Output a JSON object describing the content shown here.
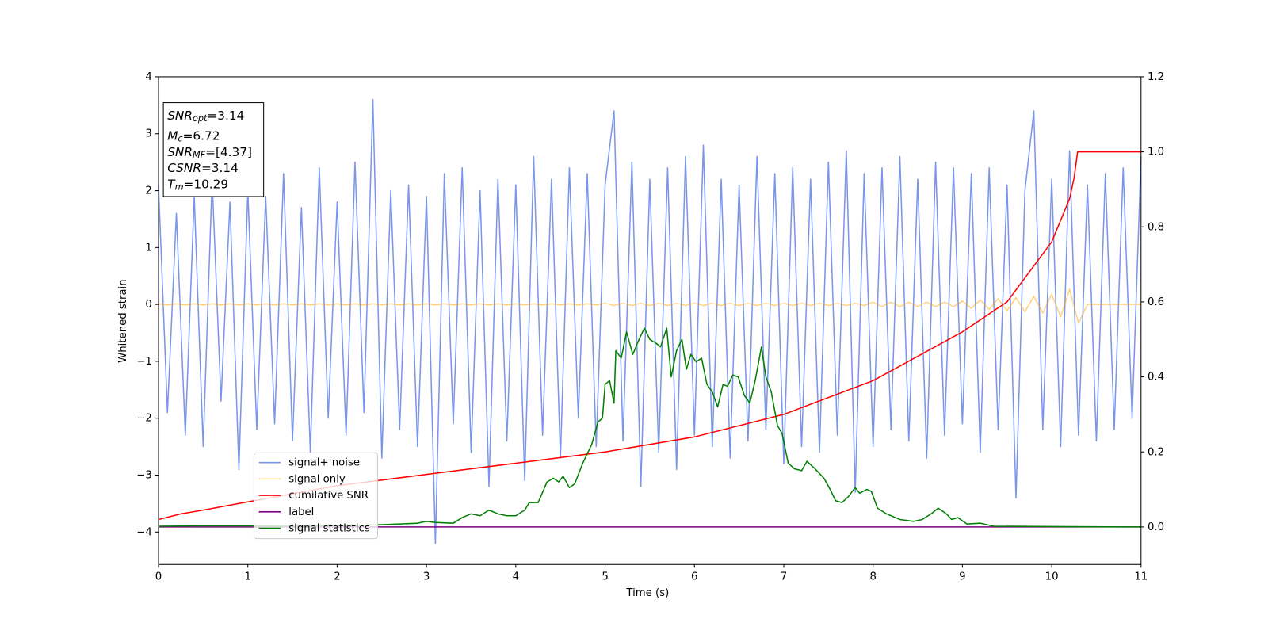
{
  "chart_data": {
    "type": "line",
    "xlabel": "Time (s)",
    "ylabel": "Whitened strain",
    "xlim": [
      0,
      11
    ],
    "xticks": [
      0,
      1,
      2,
      3,
      4,
      5,
      6,
      7,
      8,
      9,
      10,
      11
    ],
    "ylim": [
      -4.57,
      4
    ],
    "yticks": [
      {
        "value": -4,
        "label": "−4"
      },
      {
        "value": -3,
        "label": "−3"
      },
      {
        "value": -2,
        "label": "−2"
      },
      {
        "value": -1,
        "label": "−1"
      },
      0,
      1,
      2,
      3,
      4
    ],
    "y2lim": [
      -0.1,
      1.2
    ],
    "y2ticks": [
      {
        "value": 0,
        "label": "0.0"
      },
      {
        "value": 0.2,
        "label": "0.2"
      },
      {
        "value": 0.4,
        "label": "0.4"
      },
      {
        "value": 0.6,
        "label": "0.6"
      },
      {
        "value": 0.8,
        "label": "0.8"
      },
      {
        "value": 1,
        "label": "1.0"
      },
      {
        "value": 1.2,
        "label": "1.2"
      }
    ],
    "x": [
      0,
      0.1,
      0.2,
      0.3,
      0.4,
      0.5,
      0.6,
      0.7,
      0.8,
      0.9,
      1,
      1.1,
      1.2,
      1.3,
      1.4,
      1.5,
      1.6,
      1.7,
      1.8,
      1.9,
      2,
      2.1,
      2.2,
      2.3,
      2.4,
      2.5,
      2.6,
      2.7,
      2.8,
      2.9,
      3,
      3.1,
      3.2,
      3.3,
      3.4,
      3.5,
      3.6,
      3.7,
      3.8,
      3.9,
      4,
      4.1,
      4.2,
      4.3,
      4.4,
      4.5,
      4.6,
      4.7,
      4.8,
      4.9,
      5,
      5.1,
      5.2,
      5.3,
      5.4,
      5.5,
      5.6,
      5.7,
      5.8,
      5.9,
      6,
      6.1,
      6.2,
      6.3,
      6.4,
      6.5,
      6.6,
      6.7,
      6.8,
      6.9,
      7,
      7.1,
      7.2,
      7.3,
      7.4,
      7.5,
      7.6,
      7.7,
      7.8,
      7.9,
      8,
      8.1,
      8.2,
      8.3,
      8.4,
      8.5,
      8.6,
      8.7,
      8.8,
      8.9,
      9,
      9.1,
      9.2,
      9.3,
      9.4,
      9.5,
      9.6,
      9.7,
      9.8,
      9.9,
      10,
      10.1,
      10.2,
      10.3,
      10.4,
      10.5,
      10.6,
      10.7,
      10.8,
      10.9,
      11
    ],
    "series": [
      {
        "name": "signal+ noise",
        "color": "#4169e1",
        "alpha": 0.7,
        "values": [
          2.1,
          -1.9,
          1.6,
          -2.3,
          1.9,
          -2.5,
          2.2,
          -1.7,
          1.8,
          -2.9,
          2.0,
          -2.2,
          1.9,
          -2.1,
          2.3,
          -2.4,
          1.7,
          -2.6,
          2.4,
          -2.0,
          1.8,
          -2.3,
          2.5,
          -1.9,
          3.6,
          -2.7,
          2.0,
          -2.2,
          2.1,
          -2.5,
          1.9,
          -4.2,
          2.3,
          -2.1,
          2.4,
          -2.6,
          2.0,
          -3.2,
          2.2,
          -2.4,
          2.1,
          -3.1,
          2.6,
          -2.3,
          2.2,
          -2.7,
          2.4,
          -2.0,
          2.3,
          -2.5,
          2.1,
          3.4,
          -2.4,
          2.5,
          -3.2,
          2.2,
          -2.6,
          2.4,
          -2.9,
          2.6,
          -2.3,
          2.8,
          -2.5,
          2.2,
          -2.7,
          2.1,
          -2.4,
          2.6,
          -2.2,
          2.3,
          -2.8,
          2.4,
          -2.5,
          2.2,
          -2.6,
          2.5,
          -2.3,
          2.7,
          -3.3,
          2.3,
          -2.5,
          2.4,
          -2.2,
          2.6,
          -2.4,
          2.2,
          -2.7,
          2.5,
          -2.3,
          2.4,
          -2.1,
          2.3,
          -2.6,
          2.4,
          -2.2,
          2.1,
          -3.4,
          2.0,
          3.4,
          -2.2,
          2.2,
          -2.5,
          2.7,
          -2.3,
          2.1,
          -2.4,
          2.3,
          -2.2,
          2.4,
          -2.0,
          2.6
        ]
      },
      {
        "name": "signal only",
        "color": "#ffa500",
        "alpha": 0.5,
        "values": [
          0.01,
          -0.01,
          0.01,
          -0.01,
          0.01,
          -0.01,
          0.01,
          -0.01,
          0.01,
          -0.01,
          0.01,
          -0.01,
          0.01,
          -0.01,
          0.01,
          -0.01,
          0.01,
          -0.01,
          0.01,
          -0.01,
          0.01,
          -0.01,
          0.01,
          -0.01,
          0.01,
          -0.01,
          0.01,
          -0.01,
          0.01,
          -0.01,
          0.01,
          -0.01,
          0.01,
          -0.01,
          0.01,
          -0.01,
          0.01,
          -0.01,
          0.01,
          -0.01,
          0.01,
          -0.01,
          0.01,
          -0.01,
          0.01,
          -0.01,
          0.01,
          -0.01,
          0.01,
          -0.01,
          0.02,
          -0.02,
          0.02,
          -0.02,
          0.02,
          -0.02,
          0.02,
          -0.02,
          0.02,
          -0.02,
          0.02,
          -0.02,
          0.02,
          -0.02,
          0.02,
          -0.02,
          0.02,
          -0.02,
          0.02,
          -0.02,
          0.02,
          -0.02,
          0.02,
          -0.02,
          0.02,
          -0.02,
          0.02,
          -0.02,
          0.02,
          -0.02,
          0.04,
          -0.04,
          0.04,
          -0.04,
          0.04,
          -0.04,
          0.04,
          -0.04,
          0.04,
          -0.04,
          0.06,
          -0.07,
          0.08,
          -0.09,
          0.1,
          -0.11,
          0.12,
          -0.13,
          0.14,
          -0.15,
          0.18,
          -0.22,
          0.27,
          -0.33,
          0,
          0,
          0,
          0,
          0,
          0,
          0
        ]
      },
      {
        "name": "cumilative SNR",
        "color": "#ff0000",
        "alpha": 1,
        "axis": "y2",
        "x": [
          0,
          0.25,
          0.5,
          1,
          2,
          3,
          4,
          5,
          6,
          7,
          8,
          9,
          9.5,
          10,
          10.2,
          10.25,
          10.29,
          11
        ],
        "values": [
          0.02,
          0.035,
          0.045,
          0.067,
          0.11,
          0.14,
          0.17,
          0.2,
          0.24,
          0.3,
          0.39,
          0.52,
          0.6,
          0.76,
          0.875,
          0.93,
          1.0,
          1.0
        ]
      },
      {
        "name": "label",
        "color": "#800080",
        "alpha": 1,
        "axis": "y2",
        "x": [
          0,
          11
        ],
        "values": [
          0,
          0
        ]
      },
      {
        "name": "signal statistics",
        "color": "#008000",
        "alpha": 1,
        "axis": "y2",
        "x": [
          0,
          0.5,
          1,
          1.5,
          2,
          2.5,
          2.7,
          2.9,
          3.0,
          3.1,
          3.3,
          3.4,
          3.5,
          3.6,
          3.7,
          3.8,
          3.9,
          4.0,
          4.1,
          4.15,
          4.25,
          4.35,
          4.42,
          4.48,
          4.53,
          4.6,
          4.66,
          4.75,
          4.85,
          4.92,
          4.97,
          5.0,
          5.05,
          5.1,
          5.12,
          5.18,
          5.24,
          5.31,
          5.38,
          5.44,
          5.5,
          5.57,
          5.62,
          5.69,
          5.74,
          5.8,
          5.86,
          5.91,
          5.96,
          6.02,
          6.08,
          6.14,
          6.2,
          6.26,
          6.32,
          6.37,
          6.43,
          6.49,
          6.56,
          6.62,
          6.68,
          6.75,
          6.8,
          6.86,
          6.93,
          6.98,
          7.05,
          7.12,
          7.2,
          7.26,
          7.35,
          7.45,
          7.52,
          7.58,
          7.65,
          7.72,
          7.8,
          7.85,
          7.93,
          7.98,
          8.05,
          8.15,
          8.3,
          8.45,
          8.55,
          8.65,
          8.73,
          8.82,
          8.88,
          8.95,
          9.05,
          9.2,
          9.35,
          10,
          11
        ],
        "values": [
          0.002,
          0.003,
          0.003,
          0.002,
          0.003,
          0.006,
          0.008,
          0.01,
          0.015,
          0.012,
          0.01,
          0.025,
          0.035,
          0.03,
          0.045,
          0.035,
          0.03,
          0.03,
          0.045,
          0.065,
          0.065,
          0.12,
          0.13,
          0.12,
          0.135,
          0.105,
          0.115,
          0.17,
          0.22,
          0.28,
          0.29,
          0.38,
          0.39,
          0.33,
          0.47,
          0.45,
          0.52,
          0.46,
          0.5,
          0.53,
          0.5,
          0.49,
          0.48,
          0.53,
          0.4,
          0.47,
          0.5,
          0.42,
          0.46,
          0.44,
          0.45,
          0.38,
          0.36,
          0.32,
          0.38,
          0.375,
          0.405,
          0.4,
          0.35,
          0.33,
          0.39,
          0.48,
          0.4,
          0.36,
          0.27,
          0.25,
          0.17,
          0.155,
          0.15,
          0.175,
          0.155,
          0.13,
          0.1,
          0.07,
          0.065,
          0.08,
          0.105,
          0.09,
          0.1,
          0.095,
          0.05,
          0.035,
          0.02,
          0.015,
          0.02,
          0.035,
          0.05,
          0.035,
          0.02,
          0.025,
          0.008,
          0.01,
          0.002,
          0.001,
          0
        ]
      }
    ],
    "annotations": [
      {
        "symbol": "SNR",
        "subscript": "opt",
        "text": "=3.14"
      },
      {
        "symbol": "M",
        "subscript": "c",
        "text": "=6.72"
      },
      {
        "symbol": "SNR",
        "subscript": "MF",
        "text": "=[4.37]"
      },
      {
        "symbol": "CSNR",
        "text": "=3.14"
      },
      {
        "symbol": "T",
        "subscript": "m",
        "text": "=10.29"
      }
    ]
  }
}
